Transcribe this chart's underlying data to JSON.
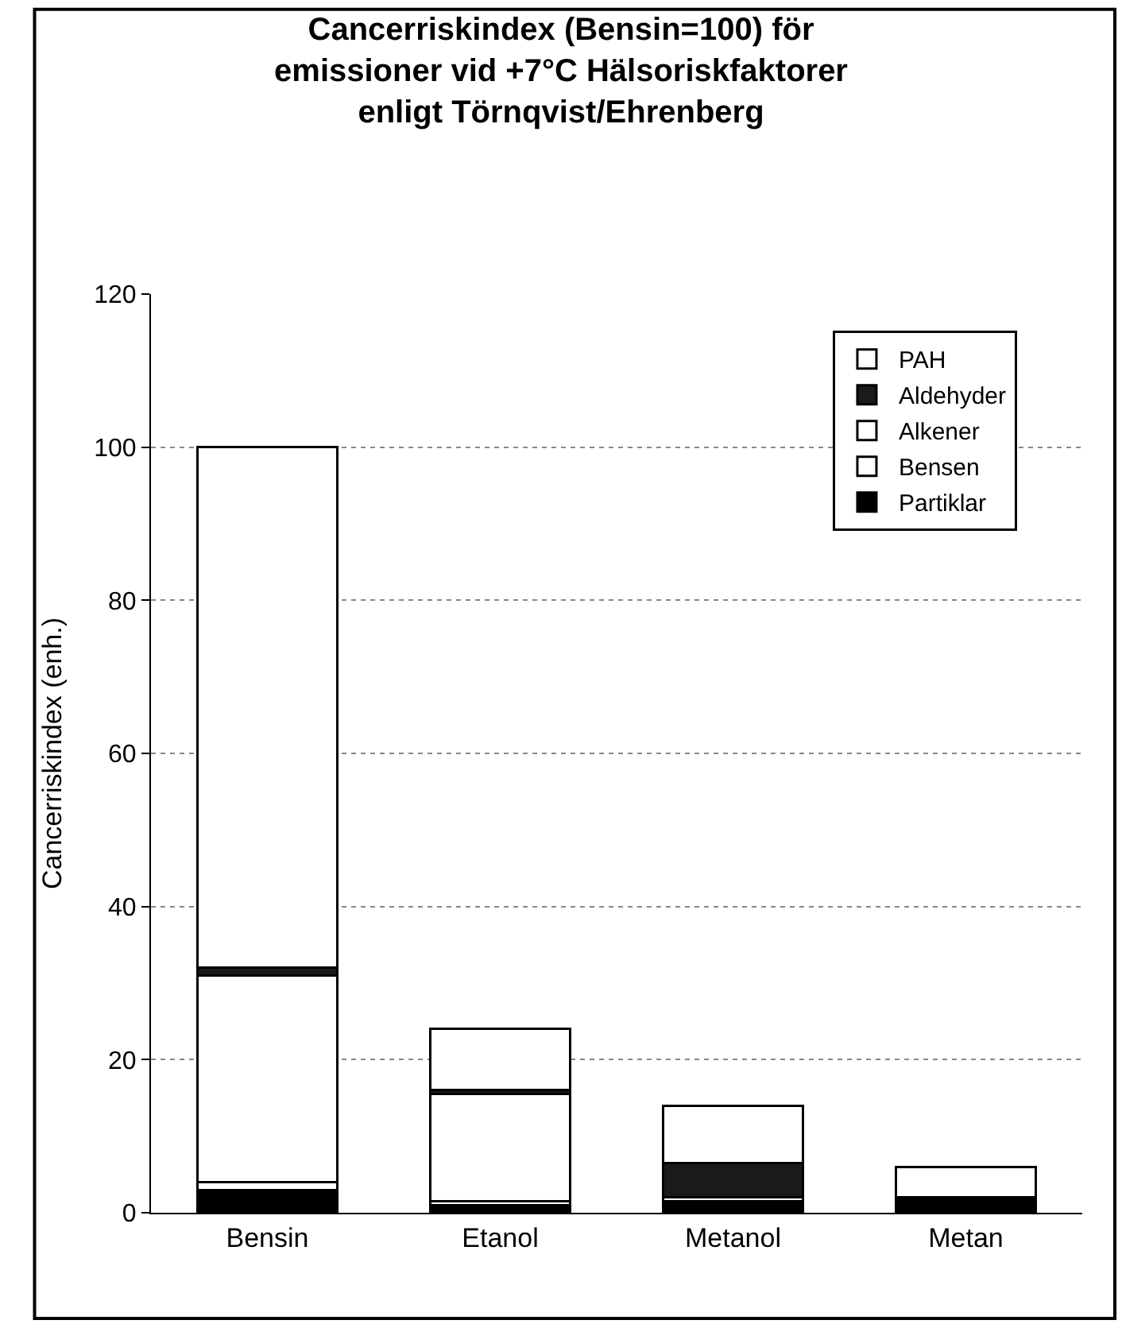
{
  "chart_data": {
    "type": "bar",
    "stacked": true,
    "title": "Cancerriskindex (Bensin=100) för\nemissioner vid +7°C Hälsoriskfaktorer\nenligt Törnqvist/Ehrenberg",
    "ylabel": "Cancerriskindex (enh.)",
    "categories": [
      "Bensin",
      "Etanol",
      "Metanol",
      "Metan"
    ],
    "series": [
      {
        "name": "Partiklar",
        "color": "#000000",
        "values": [
          3,
          1,
          1.5,
          2
        ]
      },
      {
        "name": "Bensen",
        "color": "#ffffff",
        "values": [
          1,
          0.5,
          0.5,
          0
        ]
      },
      {
        "name": "Alkener",
        "color": "#ffffff",
        "values": [
          27,
          14,
          0,
          0
        ]
      },
      {
        "name": "Aldehyder",
        "color": "#1a1a1a",
        "values": [
          1,
          0.5,
          4.5,
          0
        ]
      },
      {
        "name": "PAH",
        "color": "#ffffff",
        "values": [
          68,
          8,
          7.5,
          4
        ]
      }
    ],
    "ylim": [
      0,
      120
    ],
    "yticks": [
      0,
      20,
      40,
      60,
      80,
      100,
      120
    ],
    "grid": "y",
    "legend": "top right"
  }
}
